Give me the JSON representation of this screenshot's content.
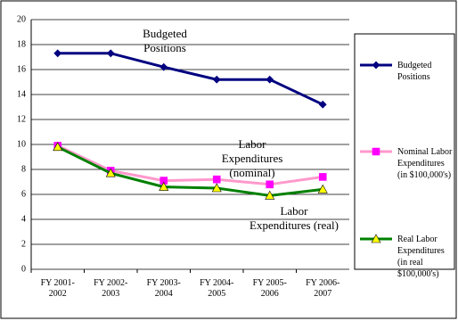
{
  "chart_data": {
    "type": "line",
    "categories": [
      "FY 2001-2002",
      "FY 2002-2003",
      "FY 2003-2004",
      "FY 2004-2005",
      "FY 2005-2006",
      "FY 2006-2007"
    ],
    "series": [
      {
        "name": "Budgeted Positions",
        "color": "#000080",
        "marker": "diamond",
        "marker_color": "#000080",
        "values": [
          17.3,
          17.3,
          16.2,
          15.2,
          15.2,
          13.2
        ]
      },
      {
        "name": "Nominal Labor Expenditures (in $100,000's)",
        "color": "#ff99cc",
        "marker": "square",
        "marker_color": "#ff00ff",
        "values": [
          9.9,
          7.9,
          7.1,
          7.2,
          6.8,
          7.4
        ]
      },
      {
        "name": "Real Labor Expenditures (in real $100,000's)",
        "color": "#008000",
        "marker": "triangle",
        "marker_color": "#ffff00",
        "values": [
          9.8,
          7.7,
          6.6,
          6.5,
          5.9,
          6.4
        ]
      }
    ],
    "annotations": [
      "Budgeted Positions",
      "Labor Expenditures (nominal)",
      "Labor Expenditures (real)"
    ],
    "ylim": [
      0,
      20
    ],
    "yticks": [
      0,
      2,
      4,
      6,
      8,
      10,
      12,
      14,
      16,
      18,
      20
    ],
    "grid": true,
    "legend": "right"
  }
}
